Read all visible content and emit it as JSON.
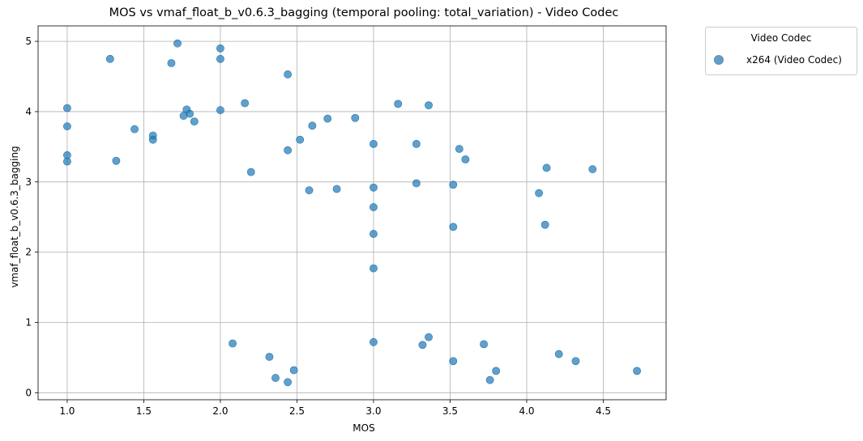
{
  "chart_data": {
    "type": "scatter",
    "title": "MOS vs vmaf_float_b_v0.6.3_bagging (temporal pooling: total_variation) - Video Codec",
    "xlabel": "MOS",
    "ylabel": "vmaf_float_b_v0.6.3_bagging",
    "xlim": [
      0.81,
      4.91
    ],
    "ylim": [
      -0.1,
      5.22
    ],
    "xticks": [
      "1.0",
      "1.5",
      "2.0",
      "2.5",
      "3.0",
      "3.5",
      "4.0",
      "4.5"
    ],
    "yticks": [
      "0",
      "1",
      "2",
      "3",
      "4",
      "5"
    ],
    "grid": true,
    "legend": {
      "title": "Video Codec",
      "placement": "outside-top-right"
    },
    "series": [
      {
        "name": "x264 (Video Codec)",
        "color": "#1f77b4",
        "points": [
          [
            1.0,
            4.05
          ],
          [
            1.0,
            3.79
          ],
          [
            1.0,
            3.38
          ],
          [
            1.0,
            3.29
          ],
          [
            1.28,
            4.75
          ],
          [
            1.32,
            3.3
          ],
          [
            1.44,
            3.75
          ],
          [
            1.56,
            3.66
          ],
          [
            1.56,
            3.6
          ],
          [
            1.68,
            4.69
          ],
          [
            1.72,
            4.97
          ],
          [
            1.76,
            3.94
          ],
          [
            1.78,
            4.03
          ],
          [
            1.8,
            3.97
          ],
          [
            1.83,
            3.86
          ],
          [
            2.0,
            4.9
          ],
          [
            2.0,
            4.75
          ],
          [
            2.0,
            4.02
          ],
          [
            2.08,
            0.7
          ],
          [
            2.16,
            4.12
          ],
          [
            2.2,
            3.14
          ],
          [
            2.32,
            0.51
          ],
          [
            2.36,
            0.21
          ],
          [
            2.44,
            4.53
          ],
          [
            2.44,
            3.45
          ],
          [
            2.44,
            0.15
          ],
          [
            2.48,
            0.32
          ],
          [
            2.52,
            3.6
          ],
          [
            2.58,
            2.88
          ],
          [
            2.6,
            3.8
          ],
          [
            2.7,
            3.9
          ],
          [
            2.76,
            2.9
          ],
          [
            2.88,
            3.91
          ],
          [
            3.0,
            3.54
          ],
          [
            3.0,
            2.92
          ],
          [
            3.0,
            2.64
          ],
          [
            3.0,
            2.26
          ],
          [
            3.0,
            1.77
          ],
          [
            3.0,
            0.72
          ],
          [
            3.16,
            4.11
          ],
          [
            3.28,
            3.54
          ],
          [
            3.28,
            2.98
          ],
          [
            3.32,
            0.68
          ],
          [
            3.36,
            4.09
          ],
          [
            3.36,
            0.79
          ],
          [
            3.52,
            2.96
          ],
          [
            3.52,
            2.36
          ],
          [
            3.52,
            0.45
          ],
          [
            3.56,
            3.47
          ],
          [
            3.6,
            3.32
          ],
          [
            3.72,
            0.69
          ],
          [
            3.76,
            0.18
          ],
          [
            3.8,
            0.31
          ],
          [
            4.08,
            2.84
          ],
          [
            4.12,
            2.39
          ],
          [
            4.13,
            3.2
          ],
          [
            4.21,
            0.55
          ],
          [
            4.32,
            0.45
          ],
          [
            4.43,
            3.18
          ],
          [
            4.72,
            0.31
          ]
        ]
      }
    ]
  }
}
